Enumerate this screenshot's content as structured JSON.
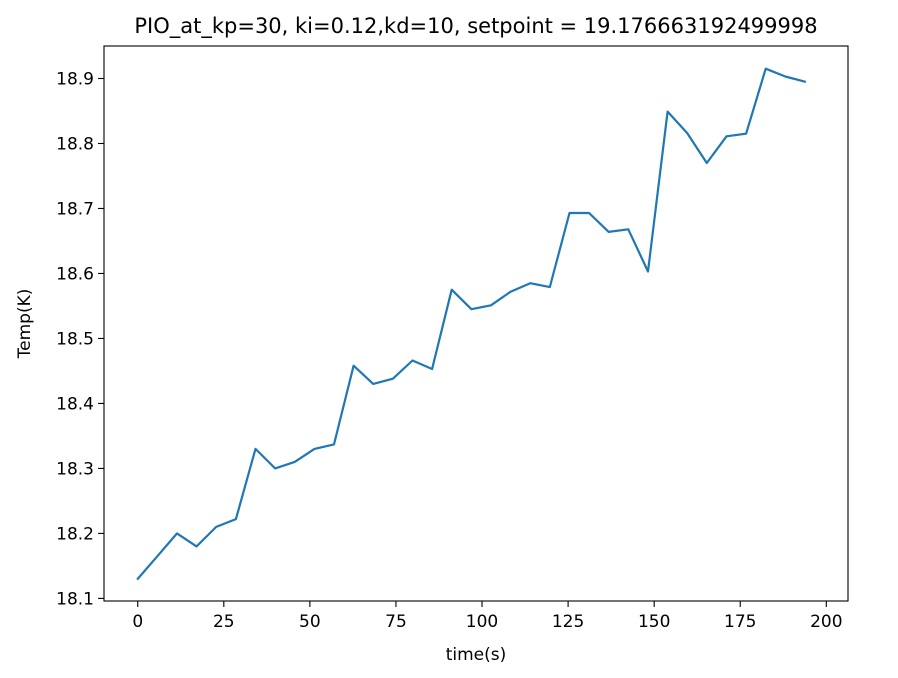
{
  "chart_data": {
    "type": "line",
    "title": "PIO_at_kp=30, ki=0.12,kd=10, setpoint = 19.176663192499998",
    "xlabel": "time(s)",
    "ylabel": "Temp(K)",
    "xlim": [
      -9.8,
      206.3
    ],
    "ylim": [
      18.096,
      18.95
    ],
    "x_ticks": [
      0,
      25,
      50,
      75,
      100,
      125,
      150,
      175,
      200
    ],
    "y_ticks": [
      18.1,
      18.2,
      18.3,
      18.4,
      18.5,
      18.6,
      18.7,
      18.8,
      18.9
    ],
    "grid": false,
    "line_color": "#1f77b4",
    "series": [
      {
        "x": [
          0,
          5.7,
          11.4,
          17.1,
          22.8,
          28.5,
          34.2,
          39.9,
          45.6,
          51.3,
          57.0,
          62.7,
          68.4,
          74.1,
          79.8,
          85.5,
          91.2,
          96.9,
          102.6,
          108.3,
          114.0,
          119.7,
          125.4,
          131.1,
          136.8,
          142.5,
          148.2,
          153.9,
          159.6,
          165.3,
          171.0,
          176.7,
          182.4,
          188.1,
          193.8
        ],
        "y": [
          18.13,
          18.165,
          18.2,
          18.18,
          18.21,
          18.222,
          18.33,
          18.3,
          18.31,
          18.33,
          18.337,
          18.458,
          18.43,
          18.438,
          18.466,
          18.453,
          18.575,
          18.545,
          18.551,
          18.572,
          18.585,
          18.579,
          18.693,
          18.693,
          18.664,
          18.668,
          18.603,
          18.849,
          18.816,
          18.77,
          18.811,
          18.815,
          18.915,
          18.903,
          18.895
        ]
      }
    ]
  }
}
